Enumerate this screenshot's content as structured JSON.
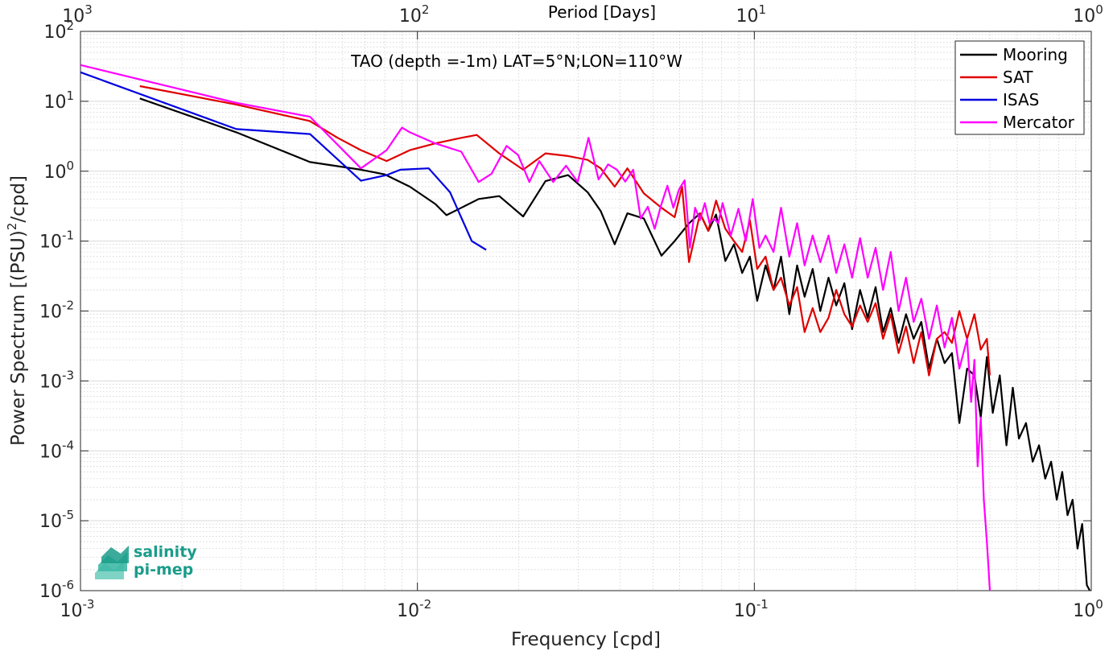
{
  "chart_data": {
    "type": "line",
    "title": "TAO (depth =-1m) LAT=5°N;LON=110°W",
    "xlabel": "Frequency [cpd]",
    "ylabel_main": "Power Spectrum [(PSU)",
    "ylabel_exp": "2",
    "ylabel_tail": "/cpd]",
    "top_xlabel": "Period [Days]",
    "xscale": "log",
    "yscale": "log",
    "xlim": [
      0.001,
      1
    ],
    "ylim": [
      1e-06,
      100
    ],
    "grid": "on (major and minor)",
    "legend_location": "top-right",
    "x_ticks": [
      {
        "value": 0.001,
        "base": "10",
        "exp": "-3"
      },
      {
        "value": 0.01,
        "base": "10",
        "exp": "-2"
      },
      {
        "value": 0.1,
        "base": "10",
        "exp": "-1"
      },
      {
        "value": 1,
        "base": "10",
        "exp": "0"
      }
    ],
    "top_ticks": [
      {
        "freq": 0.001,
        "base": "10",
        "exp": "3"
      },
      {
        "freq": 0.01,
        "base": "10",
        "exp": "2"
      },
      {
        "freq": 0.1,
        "base": "10",
        "exp": "1"
      },
      {
        "freq": 1,
        "base": "10",
        "exp": "0"
      }
    ],
    "y_ticks": [
      {
        "value": 100,
        "base": "10",
        "exp": "2"
      },
      {
        "value": 10,
        "base": "10",
        "exp": "1"
      },
      {
        "value": 1,
        "base": "10",
        "exp": "0"
      },
      {
        "value": 0.1,
        "base": "10",
        "exp": "-1"
      },
      {
        "value": 0.01,
        "base": "10",
        "exp": "-2"
      },
      {
        "value": 0.001,
        "base": "10",
        "exp": "-3"
      },
      {
        "value": 0.0001,
        "base": "10",
        "exp": "-4"
      },
      {
        "value": 1e-05,
        "base": "10",
        "exp": "-5"
      },
      {
        "value": 1e-06,
        "base": "10",
        "exp": "-6"
      }
    ],
    "series": [
      {
        "name": "Mooring",
        "color": "#000000",
        "points": [
          [
            0.0015,
            11
          ],
          [
            0.0029,
            3.6
          ],
          [
            0.0048,
            1.35
          ],
          [
            0.0068,
            1.05
          ],
          [
            0.008,
            0.9
          ],
          [
            0.0095,
            0.6
          ],
          [
            0.0113,
            0.34
          ],
          [
            0.0122,
            0.235
          ],
          [
            0.0135,
            0.3
          ],
          [
            0.0152,
            0.4
          ],
          [
            0.0175,
            0.44
          ],
          [
            0.0206,
            0.225
          ],
          [
            0.024,
            0.72
          ],
          [
            0.028,
            0.88
          ],
          [
            0.032,
            0.5
          ],
          [
            0.035,
            0.27
          ],
          [
            0.0385,
            0.09
          ],
          [
            0.042,
            0.25
          ],
          [
            0.047,
            0.21
          ],
          [
            0.053,
            0.062
          ],
          [
            0.058,
            0.1
          ],
          [
            0.064,
            0.18
          ],
          [
            0.069,
            0.25
          ],
          [
            0.073,
            0.14
          ],
          [
            0.077,
            0.24
          ],
          [
            0.082,
            0.052
          ],
          [
            0.087,
            0.09
          ],
          [
            0.092,
            0.035
          ],
          [
            0.097,
            0.06
          ],
          [
            0.102,
            0.014
          ],
          [
            0.108,
            0.045
          ],
          [
            0.114,
            0.02
          ],
          [
            0.12,
            0.06
          ],
          [
            0.127,
            0.009
          ],
          [
            0.134,
            0.045
          ],
          [
            0.141,
            0.016
          ],
          [
            0.149,
            0.04
          ],
          [
            0.157,
            0.01
          ],
          [
            0.166,
            0.03
          ],
          [
            0.175,
            0.012
          ],
          [
            0.185,
            0.025
          ],
          [
            0.195,
            0.0055
          ],
          [
            0.206,
            0.02
          ],
          [
            0.217,
            0.008
          ],
          [
            0.229,
            0.022
          ],
          [
            0.241,
            0.005
          ],
          [
            0.254,
            0.011
          ],
          [
            0.268,
            0.0035
          ],
          [
            0.282,
            0.009
          ],
          [
            0.297,
            0.004
          ],
          [
            0.313,
            0.007
          ],
          [
            0.33,
            0.0015
          ],
          [
            0.348,
            0.004
          ],
          [
            0.367,
            0.0018
          ],
          [
            0.386,
            0.0025
          ],
          [
            0.406,
            0.00025
          ],
          [
            0.428,
            0.0015
          ],
          [
            0.45,
            0.0012
          ],
          [
            0.47,
            0.0003
          ],
          [
            0.49,
            0.0022
          ],
          [
            0.51,
            0.00035
          ],
          [
            0.535,
            0.0012
          ],
          [
            0.56,
            0.00012
          ],
          [
            0.585,
            0.0008
          ],
          [
            0.61,
            0.00015
          ],
          [
            0.64,
            0.00025
          ],
          [
            0.67,
            7e-05
          ],
          [
            0.7,
            0.00012
          ],
          [
            0.73,
            4e-05
          ],
          [
            0.76,
            7e-05
          ],
          [
            0.79,
            2e-05
          ],
          [
            0.82,
            5e-05
          ],
          [
            0.85,
            1.2e-05
          ],
          [
            0.88,
            2e-05
          ],
          [
            0.91,
            4e-06
          ],
          [
            0.94,
            9e-06
          ],
          [
            0.97,
            1.2e-06
          ],
          [
            0.99,
            1e-06
          ]
        ]
      },
      {
        "name": "SAT",
        "color": "#e00000",
        "points": [
          [
            0.0015,
            16.5
          ],
          [
            0.0029,
            9
          ],
          [
            0.0048,
            5.2
          ],
          [
            0.0058,
            3
          ],
          [
            0.0068,
            2
          ],
          [
            0.0081,
            1.4
          ],
          [
            0.0095,
            2
          ],
          [
            0.0113,
            2.5
          ],
          [
            0.0135,
            3
          ],
          [
            0.015,
            3.3
          ],
          [
            0.0175,
            1.8
          ],
          [
            0.0206,
            1.05
          ],
          [
            0.024,
            1.8
          ],
          [
            0.028,
            1.65
          ],
          [
            0.032,
            1.45
          ],
          [
            0.035,
            1.1
          ],
          [
            0.0385,
            0.6
          ],
          [
            0.042,
            1.1
          ],
          [
            0.047,
            0.48
          ],
          [
            0.053,
            0.3
          ],
          [
            0.058,
            0.22
          ],
          [
            0.061,
            0.6
          ],
          [
            0.064,
            0.05
          ],
          [
            0.069,
            0.25
          ],
          [
            0.073,
            0.14
          ],
          [
            0.077,
            0.38
          ],
          [
            0.082,
            0.15
          ],
          [
            0.087,
            0.1
          ],
          [
            0.092,
            0.07
          ],
          [
            0.097,
            0.2
          ],
          [
            0.102,
            0.04
          ],
          [
            0.108,
            0.06
          ],
          [
            0.114,
            0.02
          ],
          [
            0.12,
            0.03
          ],
          [
            0.127,
            0.012
          ],
          [
            0.134,
            0.022
          ],
          [
            0.141,
            0.005
          ],
          [
            0.149,
            0.011
          ],
          [
            0.157,
            0.005
          ],
          [
            0.166,
            0.008
          ],
          [
            0.175,
            0.02
          ],
          [
            0.185,
            0.009
          ],
          [
            0.195,
            0.006
          ],
          [
            0.206,
            0.012
          ],
          [
            0.217,
            0.007
          ],
          [
            0.229,
            0.013
          ],
          [
            0.241,
            0.004
          ],
          [
            0.254,
            0.009
          ],
          [
            0.268,
            0.0025
          ],
          [
            0.282,
            0.006
          ],
          [
            0.297,
            0.0018
          ],
          [
            0.313,
            0.005
          ],
          [
            0.33,
            0.0012
          ],
          [
            0.348,
            0.004
          ],
          [
            0.367,
            0.005
          ],
          [
            0.386,
            0.0035
          ],
          [
            0.406,
            0.01
          ],
          [
            0.428,
            0.004
          ],
          [
            0.45,
            0.009
          ],
          [
            0.47,
            0.0028
          ],
          [
            0.49,
            0.004
          ],
          [
            0.5,
            0.0012
          ]
        ]
      },
      {
        "name": "ISAS",
        "color": "#0000e0",
        "points": [
          [
            0.001,
            26
          ],
          [
            0.0029,
            4
          ],
          [
            0.0048,
            3.4
          ],
          [
            0.0068,
            0.73
          ],
          [
            0.0081,
            0.88
          ],
          [
            0.0089,
            1.05
          ],
          [
            0.0108,
            1.1
          ],
          [
            0.0125,
            0.5
          ],
          [
            0.0145,
            0.1
          ],
          [
            0.016,
            0.075
          ]
        ]
      },
      {
        "name": "Mercator",
        "color": "#ff00ff",
        "points": [
          [
            0.001,
            33
          ],
          [
            0.0029,
            9.5
          ],
          [
            0.0048,
            6
          ],
          [
            0.0068,
            1.1
          ],
          [
            0.0081,
            2
          ],
          [
            0.009,
            4.2
          ],
          [
            0.0095,
            3.6
          ],
          [
            0.0113,
            2.5
          ],
          [
            0.0135,
            1.9
          ],
          [
            0.0152,
            0.7
          ],
          [
            0.0166,
            0.92
          ],
          [
            0.0184,
            2.3
          ],
          [
            0.0199,
            1.7
          ],
          [
            0.0215,
            0.7
          ],
          [
            0.023,
            1.4
          ],
          [
            0.0253,
            0.7
          ],
          [
            0.0276,
            1.2
          ],
          [
            0.0299,
            0.7
          ],
          [
            0.0322,
            3
          ],
          [
            0.0345,
            0.76
          ],
          [
            0.0368,
            1.25
          ],
          [
            0.0391,
            1.05
          ],
          [
            0.0414,
            0.71
          ],
          [
            0.0437,
            1.05
          ],
          [
            0.046,
            0.21
          ],
          [
            0.0483,
            0.31
          ],
          [
            0.0506,
            0.15
          ],
          [
            0.0529,
            0.33
          ],
          [
            0.0552,
            0.62
          ],
          [
            0.0575,
            0.3
          ],
          [
            0.0598,
            0.55
          ],
          [
            0.0621,
            0.74
          ],
          [
            0.0644,
            0.08
          ],
          [
            0.0667,
            0.3
          ],
          [
            0.069,
            0.2
          ],
          [
            0.0713,
            0.35
          ],
          [
            0.0736,
            0.18
          ],
          [
            0.0759,
            0.21
          ],
          [
            0.0782,
            0.18
          ],
          [
            0.0805,
            0.35
          ],
          [
            0.0851,
            0.12
          ],
          [
            0.0897,
            0.29
          ],
          [
            0.0943,
            0.1
          ],
          [
            0.0989,
            0.4
          ],
          [
            0.1035,
            0.08
          ],
          [
            0.108,
            0.12
          ],
          [
            0.114,
            0.07
          ],
          [
            0.12,
            0.3
          ],
          [
            0.127,
            0.06
          ],
          [
            0.134,
            0.18
          ],
          [
            0.141,
            0.045
          ],
          [
            0.149,
            0.12
          ],
          [
            0.157,
            0.05
          ],
          [
            0.166,
            0.12
          ],
          [
            0.175,
            0.035
          ],
          [
            0.185,
            0.09
          ],
          [
            0.195,
            0.03
          ],
          [
            0.206,
            0.11
          ],
          [
            0.217,
            0.03
          ],
          [
            0.229,
            0.08
          ],
          [
            0.241,
            0.02
          ],
          [
            0.254,
            0.07
          ],
          [
            0.268,
            0.01
          ],
          [
            0.282,
            0.03
          ],
          [
            0.297,
            0.007
          ],
          [
            0.313,
            0.015
          ],
          [
            0.33,
            0.004
          ],
          [
            0.348,
            0.012
          ],
          [
            0.367,
            0.003
          ],
          [
            0.386,
            0.008
          ],
          [
            0.406,
            0.0015
          ],
          [
            0.428,
            0.004
          ],
          [
            0.44,
            0.0005
          ],
          [
            0.45,
            0.002
          ],
          [
            0.46,
            6e-05
          ],
          [
            0.47,
            0.0003
          ],
          [
            0.48,
            2e-05
          ],
          [
            0.49,
            5e-06
          ],
          [
            0.5,
            1e-06
          ]
        ]
      }
    ],
    "legend": [
      "Mooring",
      "SAT",
      "ISAS",
      "Mercator"
    ]
  },
  "logo": {
    "line1": "salinity",
    "line2": "pi-mep"
  }
}
